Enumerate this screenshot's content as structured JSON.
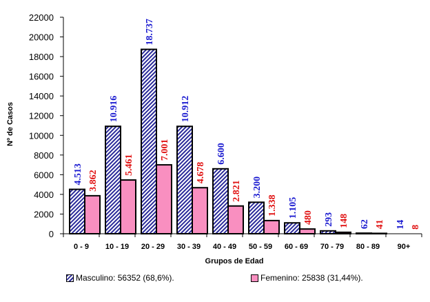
{
  "chart_data": {
    "type": "bar",
    "xlabel": "Grupos de Edad",
    "ylabel": "Nº de Casos",
    "ylim": [
      0,
      22000
    ],
    "ytick_step": 2000,
    "categories": [
      "0 - 9",
      "10 - 19",
      "20 - 29",
      "30 - 39",
      "40 - 49",
      "50 - 59",
      "60 - 69",
      "70 - 79",
      "80 - 89",
      "90+"
    ],
    "series": [
      {
        "name": "Masculino: 56352 (68,6%).",
        "values": [
          4513,
          10916,
          18737,
          10912,
          6600,
          3200,
          1105,
          293,
          62,
          14
        ],
        "data_labels": [
          "4.513",
          "10.916",
          "18.737",
          "10.912",
          "6.600",
          "3.200",
          "1.105",
          "293",
          "62",
          "14"
        ],
        "fill": "hatched-blue",
        "label_color": "#1a1ad0"
      },
      {
        "name": "Femenino: 25838 (31,44%).",
        "values": [
          3862,
          5461,
          7001,
          4678,
          2821,
          1338,
          480,
          148,
          41,
          8
        ],
        "data_labels": [
          "3.862",
          "5.461",
          "7.001",
          "4.678",
          "2.821",
          "1.338",
          "480",
          "148",
          "41",
          "8"
        ],
        "fill": "#f98fc0",
        "label_color": "#e01010"
      }
    ],
    "grid": false,
    "legend_position": "bottom"
  }
}
